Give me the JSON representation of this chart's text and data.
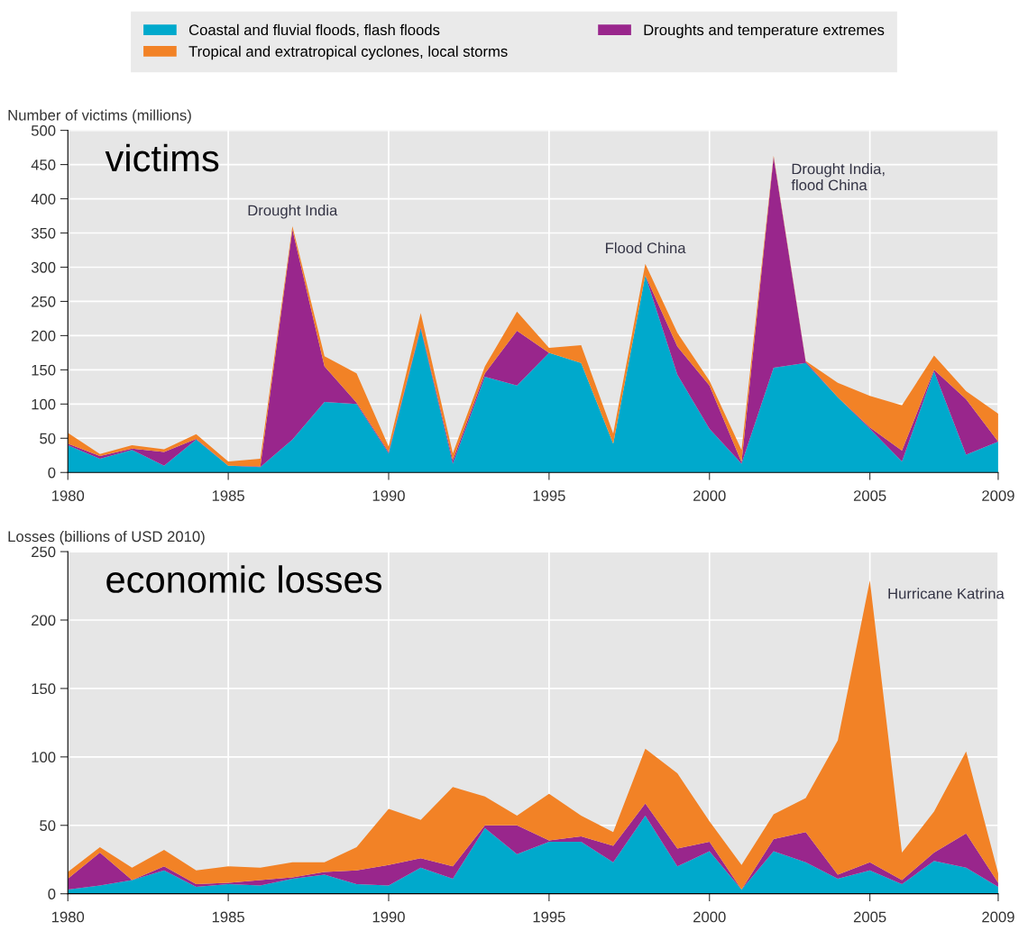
{
  "chart_data": [
    {
      "type": "area",
      "stacked": true,
      "ylabel": "Number of victims (millions)",
      "legend": "top",
      "grid": true,
      "x": [
        1980,
        1981,
        1982,
        1983,
        1984,
        1985,
        1986,
        1987,
        1988,
        1989,
        1990,
        1991,
        1992,
        1993,
        1994,
        1995,
        1996,
        1997,
        1998,
        1999,
        2000,
        2001,
        2002,
        2003,
        2004,
        2005,
        2006,
        2007,
        2008,
        2009
      ],
      "xlim": [
        1980,
        2009
      ],
      "xticks": [
        1980,
        1985,
        1990,
        1995,
        2000,
        2005,
        2009
      ],
      "ylim": [
        0,
        500
      ],
      "yticks": [
        0,
        50,
        100,
        150,
        200,
        250,
        300,
        350,
        400,
        450,
        500
      ],
      "series": [
        {
          "name": "Coastal and fluvial floods, flash floods",
          "color": "#00a9cc",
          "values": [
            40,
            20,
            33,
            10,
            48,
            10,
            8,
            48,
            103,
            100,
            28,
            210,
            13,
            140,
            127,
            175,
            160,
            42,
            288,
            143,
            64,
            13,
            153,
            160,
            110,
            64,
            16,
            148,
            26,
            45
          ]
        },
        {
          "name": "Droughts and temperature extremes",
          "color": "#99268c",
          "values": [
            2,
            4,
            2,
            20,
            1,
            0,
            1,
            307,
            52,
            2,
            2,
            2,
            5,
            5,
            80,
            0,
            0,
            0,
            0,
            41,
            63,
            2,
            308,
            2,
            0,
            2,
            16,
            2,
            81,
            0
          ]
        },
        {
          "name": "Tropical and extratropical cyclones, local storms",
          "color": "#f28226",
          "values": [
            16,
            3,
            5,
            4,
            7,
            6,
            11,
            5,
            15,
            43,
            8,
            21,
            10,
            10,
            28,
            7,
            26,
            15,
            17,
            20,
            7,
            18,
            2,
            1,
            21,
            46,
            66,
            21,
            12,
            41
          ]
        }
      ],
      "annotations": [
        "victims",
        {
          "text": "Drought India",
          "x": 1987,
          "y": 360
        },
        {
          "text": "Flood China",
          "x": 1998,
          "y": 305
        },
        {
          "text": "Drought India,\nflood China",
          "x": 2002,
          "y": 463
        }
      ]
    },
    {
      "type": "area",
      "stacked": true,
      "ylabel": "Losses (billions of USD 2010)",
      "grid": true,
      "x": [
        1980,
        1981,
        1982,
        1983,
        1984,
        1985,
        1986,
        1987,
        1988,
        1989,
        1990,
        1991,
        1992,
        1993,
        1994,
        1995,
        1996,
        1997,
        1998,
        1999,
        2000,
        2001,
        2002,
        2003,
        2004,
        2005,
        2006,
        2007,
        2008,
        2009
      ],
      "xlim": [
        1980,
        2009
      ],
      "xticks": [
        1980,
        1985,
        1990,
        1995,
        2000,
        2005,
        2009
      ],
      "ylim": [
        0,
        250
      ],
      "yticks": [
        0,
        50,
        100,
        150,
        200,
        250
      ],
      "series": [
        {
          "color": "#00a9cc",
          "values": [
            3,
            6,
            10,
            17,
            5,
            7,
            6,
            11,
            14,
            7,
            6,
            19,
            11,
            48,
            29,
            38,
            38,
            23,
            57,
            20,
            31,
            3,
            31,
            23,
            11,
            17,
            7,
            24,
            19,
            5
          ]
        },
        {
          "color": "#99268c",
          "values": [
            8,
            24,
            0,
            3,
            2,
            1,
            4,
            1,
            2,
            10,
            15,
            7,
            9,
            2,
            21,
            1,
            4,
            12,
            9,
            13,
            7,
            0,
            9,
            22,
            3,
            6,
            3,
            6,
            25,
            3
          ]
        },
        {
          "color": "#f28226",
          "values": [
            5,
            4,
            9,
            12,
            10,
            12,
            9,
            11,
            7,
            17,
            41,
            28,
            58,
            21,
            7,
            34,
            15,
            10,
            40,
            55,
            15,
            18,
            18,
            25,
            98,
            206,
            20,
            30,
            60,
            7
          ]
        }
      ],
      "annotations": [
        "economic losses",
        {
          "text": "Hurricane Katrina",
          "x": 2005,
          "y": 229
        }
      ]
    }
  ]
}
